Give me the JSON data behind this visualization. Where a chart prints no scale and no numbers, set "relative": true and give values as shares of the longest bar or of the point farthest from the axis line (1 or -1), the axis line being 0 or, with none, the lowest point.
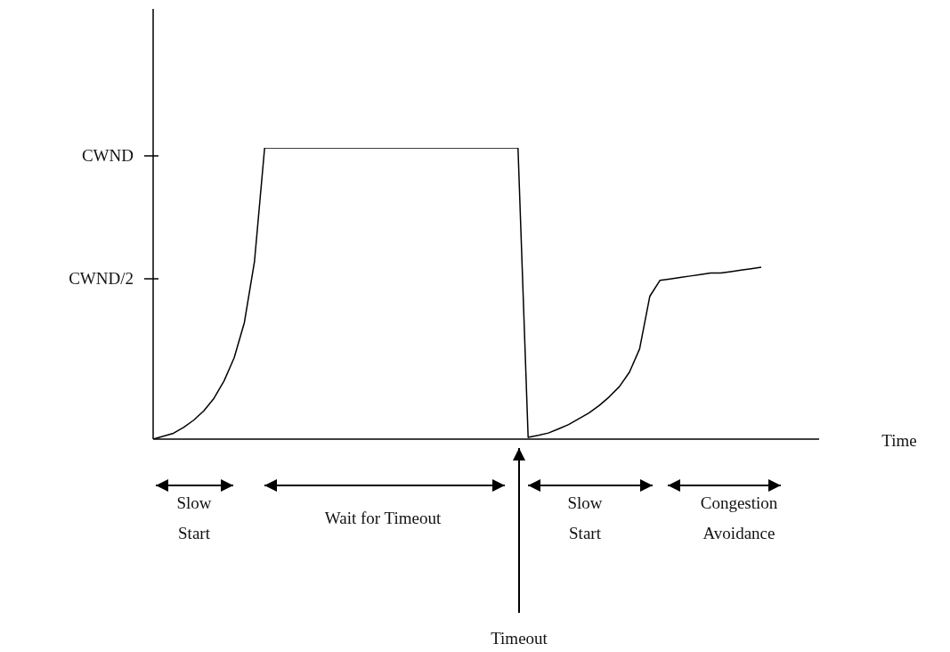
{
  "chart_data": {
    "type": "line",
    "relative": true,
    "categories": [
      null,
      null,
      null,
      null,
      null,
      null,
      null,
      null,
      null,
      null,
      null,
      null,
      null,
      null,
      null,
      null,
      null,
      null,
      null,
      null,
      null,
      null,
      null,
      null,
      null,
      null,
      null,
      null,
      null,
      null,
      null,
      null,
      null,
      null,
      null,
      null,
      null,
      null,
      null,
      null,
      null,
      null,
      null,
      null,
      null,
      null,
      null,
      null,
      null,
      null,
      null,
      null,
      null,
      null,
      null,
      null,
      null,
      null,
      null,
      null,
      null
    ],
    "series": [
      {
        "color": "#000000",
        "values": [
          0,
          0.01,
          0.02,
          0.04,
          0.065,
          0.097,
          0.14,
          0.2,
          0.28,
          0.4,
          0.61,
          1,
          1,
          1,
          1,
          1,
          1,
          1,
          1,
          1,
          1,
          1,
          1,
          1,
          1,
          1,
          1,
          1,
          1,
          1,
          1,
          1,
          1,
          1,
          1,
          1,
          1,
          0.006,
          0.013,
          0.021,
          0.035,
          0.05,
          0.07,
          0.09,
          0.115,
          0.145,
          0.18,
          0.23,
          0.31,
          0.49,
          0.545,
          0.55,
          0.555,
          0.56,
          0.565,
          0.57,
          0.57,
          0.575,
          0.58,
          0.585,
          0.59
        ]
      }
    ],
    "legend": false,
    "marker": "none",
    "line_style": "solid",
    "annotations": [
      "CWND",
      "CWND/2",
      "Slow Start",
      "Wait for Timeout",
      "Slow Start",
      "Congestion Avoidance",
      "Timeout",
      "Time"
    ]
  }
}
